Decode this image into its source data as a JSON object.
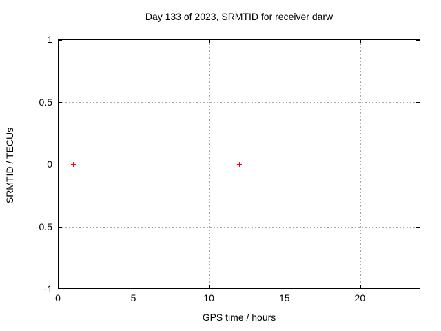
{
  "chart_data": {
    "type": "scatter",
    "title": "Day 133 of 2023, SRMTID for receiver darw",
    "xlabel": "GPS time / hours",
    "ylabel": "SRMTID / TECUs",
    "xlim": [
      0,
      24
    ],
    "ylim": [
      -1,
      1
    ],
    "xticks": [
      0,
      5,
      10,
      15,
      20
    ],
    "yticks": [
      -1,
      -0.5,
      0,
      0.5,
      1
    ],
    "grid": true,
    "legend": false,
    "series": [
      {
        "marker": "plus",
        "color": "#ff0000",
        "points": [
          [
            1,
            0
          ],
          [
            12,
            0
          ]
        ]
      }
    ],
    "colors": {
      "background": "#ffffff",
      "axis": "#000000",
      "grid": "#a8a8a8",
      "text": "#000000"
    }
  }
}
